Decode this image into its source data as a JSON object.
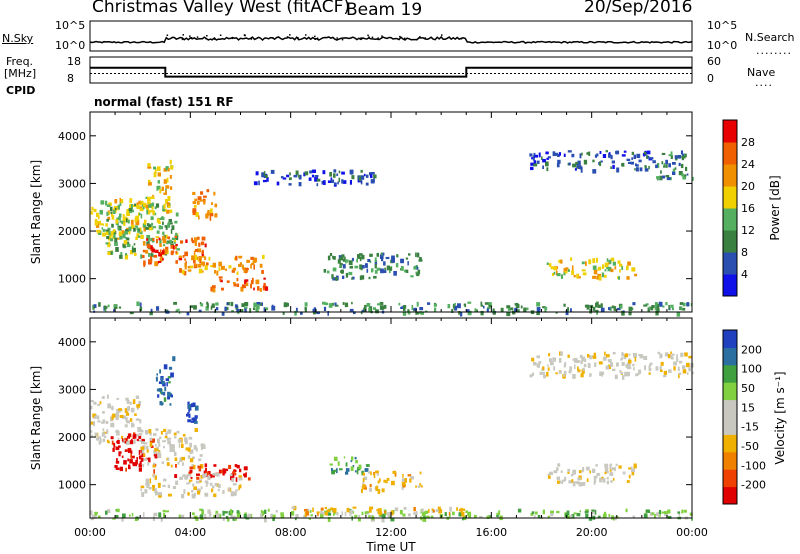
{
  "header": {
    "station": "Christmas Valley West (fitACF)",
    "beam": "Beam 19",
    "date": "20/Sep/2016"
  },
  "left_labels": {
    "nsky": "N.Sky",
    "freq_line1": "Freq.",
    "freq_line2": "[MHz]",
    "cpid": "CPID"
  },
  "right_labels": {
    "nsearch": "N.Search",
    "nave": "Nave"
  },
  "mode_text": "normal (fast) 151 RF",
  "colors": {
    "power_scale": [
      "#1010e8",
      "#2a4fb0",
      "#3a8040",
      "#54b060",
      "#f0d000",
      "#f09000",
      "#f06000",
      "#e80000"
    ],
    "velocity_scale": [
      "#e00000",
      "#f04000",
      "#f08000",
      "#f0b000",
      "#c8c8c0",
      "#c8c8c0",
      "#80d040",
      "#40a040",
      "#2a6fa0",
      "#2040c0"
    ]
  },
  "chart_data": [
    {
      "type": "line",
      "panel": "noise",
      "left_ticks": [
        "10^5",
        "10^0"
      ],
      "right_ticks": [
        "10^5",
        "10^0"
      ]
    },
    {
      "type": "line",
      "panel": "frequency_nave",
      "left_ticks": [
        "18",
        "8"
      ],
      "right_ticks": [
        "60",
        "0"
      ],
      "freq_series": {
        "x_hours": [
          0,
          3.0,
          3.0,
          15.0,
          15.0,
          24
        ],
        "y": [
          14,
          14,
          10,
          10,
          14,
          14
        ]
      },
      "nave_series": {
        "x_hours": [
          0,
          24
        ],
        "y": [
          22,
          22
        ]
      },
      "ylim_freq": [
        8,
        18
      ],
      "ylim_nave": [
        0,
        60
      ]
    },
    {
      "type": "heatmap",
      "panel": "power",
      "ylabel": "Slant Range [km]",
      "yticks": [
        "1000",
        "2000",
        "3000",
        "4000"
      ],
      "ylim": [
        300,
        4500
      ],
      "xlim_hours": [
        0,
        24
      ],
      "colorbar_label": "Power [dB]",
      "colorbar_ticks": [
        "4",
        "8",
        "12",
        "16",
        "20",
        "24",
        "28"
      ],
      "regions": [
        {
          "t0": 0.0,
          "t1": 2.2,
          "r0": 1850,
          "r1": 2700,
          "level": 4
        },
        {
          "t0": 0.6,
          "t1": 3.5,
          "r0": 1500,
          "r1": 2600,
          "level": 3
        },
        {
          "t0": 2.0,
          "t1": 4.6,
          "r0": 1300,
          "r1": 1900,
          "level": 6
        },
        {
          "t0": 3.5,
          "t1": 7.0,
          "r0": 1150,
          "r1": 1500,
          "level": 5
        },
        {
          "t0": 2.2,
          "t1": 3.2,
          "r0": 2400,
          "r1": 3500,
          "level": 4
        },
        {
          "t0": 4.0,
          "t1": 5.0,
          "r0": 2300,
          "r1": 2900,
          "level": 5
        },
        {
          "t0": 4.5,
          "t1": 7.0,
          "r0": 800,
          "r1": 1050,
          "level": 6
        },
        {
          "t0": 9.3,
          "t1": 13.2,
          "r0": 1000,
          "r1": 1550,
          "level": 2
        },
        {
          "t0": 18.2,
          "t1": 21.7,
          "r0": 1050,
          "r1": 1450,
          "level": 4
        },
        {
          "t0": 17.5,
          "t1": 22.5,
          "r0": 3300,
          "r1": 3700,
          "level": 1
        },
        {
          "t0": 22.5,
          "t1": 24.0,
          "r0": 3100,
          "r1": 3700,
          "level": 2
        },
        {
          "t0": 6.5,
          "t1": 11.5,
          "r0": 3000,
          "r1": 3300,
          "level": 1
        },
        {
          "t0": 0.0,
          "t1": 24.0,
          "r0": 300,
          "r1": 520,
          "level": 2
        }
      ]
    },
    {
      "type": "heatmap",
      "panel": "velocity",
      "ylabel": "Slant Range [km]",
      "yticks": [
        "1000",
        "2000",
        "3000",
        "4000"
      ],
      "ylim": [
        300,
        4500
      ],
      "xlim_hours": [
        0,
        24
      ],
      "xticks": [
        "00:00",
        "04:00",
        "08:00",
        "12:00",
        "16:00",
        "20:00",
        "00:00"
      ],
      "xlabel": "Time UT",
      "colorbar_label": "Velocity [m s⁻¹]",
      "colorbar_ticks": [
        "-200",
        "-100",
        "-50",
        "-15",
        "15",
        "50",
        "100",
        "200"
      ],
      "regions": [
        {
          "t0": 0.0,
          "t1": 2.0,
          "r0": 1900,
          "r1": 2900,
          "level": 4
        },
        {
          "t0": 0.8,
          "t1": 2.6,
          "r0": 1300,
          "r1": 2100,
          "level": 0
        },
        {
          "t0": 2.0,
          "t1": 4.5,
          "r0": 1400,
          "r1": 2200,
          "level": 4
        },
        {
          "t0": 3.3,
          "t1": 6.3,
          "r0": 1150,
          "r1": 1450,
          "level": 0
        },
        {
          "t0": 2.6,
          "t1": 3.3,
          "r0": 2700,
          "r1": 3700,
          "level": 8
        },
        {
          "t0": 3.8,
          "t1": 4.2,
          "r0": 2300,
          "r1": 2800,
          "level": 9
        },
        {
          "t0": 2.0,
          "t1": 6.0,
          "r0": 800,
          "r1": 1250,
          "level": 4
        },
        {
          "t0": 9.5,
          "t1": 11.0,
          "r0": 1250,
          "r1": 1600,
          "level": 7
        },
        {
          "t0": 10.8,
          "t1": 13.2,
          "r0": 900,
          "r1": 1300,
          "level": 3
        },
        {
          "t0": 18.2,
          "t1": 21.7,
          "r0": 1050,
          "r1": 1450,
          "level": 4
        },
        {
          "t0": 17.5,
          "t1": 24.0,
          "r0": 3300,
          "r1": 3800,
          "level": 4
        },
        {
          "t0": 0.0,
          "t1": 24.0,
          "r0": 300,
          "r1": 500,
          "level": 6
        },
        {
          "t0": 8.0,
          "t1": 15.0,
          "r0": 420,
          "r1": 560,
          "level": 3
        }
      ]
    }
  ]
}
